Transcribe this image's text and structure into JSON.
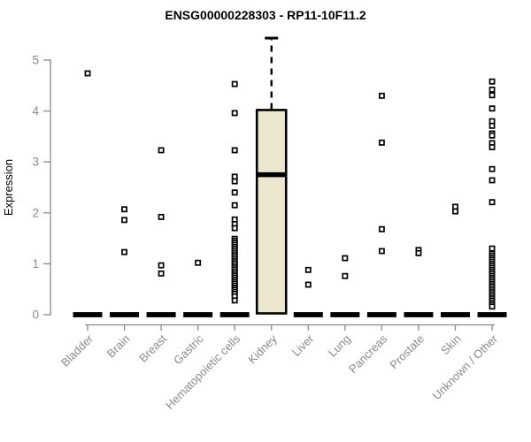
{
  "page": {
    "background": "#ffffff"
  },
  "chart_data": {
    "type": "boxplot",
    "title": "ENSG00000228303 - RP11-10F11.2",
    "ylabel": "Expression",
    "xlabel": "",
    "ylim": [
      0,
      5.5
    ],
    "yticks": [
      0,
      1,
      2,
      3,
      4,
      5
    ],
    "grid": false,
    "legend": "none",
    "title_color": "#000000",
    "axis_color": "#8A8A8A",
    "box_fill_color": "#ECE6CC",
    "box_line_color": "#000000",
    "outlier_marker": "open-square",
    "categories": [
      "Bladder",
      "Brain",
      "Breast",
      "Gastric",
      "Hematopoietic cells",
      "Kidney",
      "Liver",
      "Lung",
      "Pancreas",
      "Prostate",
      "Skin",
      "Unknown / Other"
    ],
    "boxes": [
      {
        "category": "Bladder",
        "q1": 0,
        "median": 0,
        "q3": 0,
        "collapsed": true,
        "points": [
          4.74
        ]
      },
      {
        "category": "Brain",
        "q1": 0,
        "median": 0,
        "q3": 0,
        "collapsed": true,
        "points": [
          2.07,
          1.86,
          1.23
        ]
      },
      {
        "category": "Breast",
        "q1": 0,
        "median": 0,
        "q3": 0,
        "collapsed": true,
        "points": [
          3.23,
          1.92,
          0.97,
          0.81
        ]
      },
      {
        "category": "Gastric",
        "q1": 0,
        "median": 0,
        "q3": 0,
        "collapsed": true,
        "points": [
          1.02
        ]
      },
      {
        "category": "Hematopoietic cells",
        "q1": 0,
        "median": 0,
        "q3": 0,
        "collapsed": true,
        "points": [
          4.53,
          3.96,
          3.23,
          2.71,
          2.62,
          2.4,
          2.15,
          1.87,
          1.78,
          1.7,
          1.49,
          1.45,
          1.41,
          1.37,
          1.33,
          1.29,
          1.25,
          1.21,
          1.17,
          1.13,
          1.09,
          1.05,
          1.01,
          0.97,
          0.93,
          0.89,
          0.85,
          0.81,
          0.77,
          0.73,
          0.69,
          0.65,
          0.61,
          0.57,
          0.53,
          0.49,
          0.45,
          0.41,
          0.36,
          0.28
        ]
      },
      {
        "category": "Kidney",
        "q1": 0,
        "median": 2.75,
        "q3": 4.02,
        "whisker_high": 5.45,
        "whisker_style": "dashed",
        "collapsed": false,
        "points": []
      },
      {
        "category": "Liver",
        "q1": 0,
        "median": 0,
        "q3": 0,
        "collapsed": true,
        "points": [
          0.88,
          0.59
        ]
      },
      {
        "category": "Lung",
        "q1": 0,
        "median": 0,
        "q3": 0,
        "collapsed": true,
        "points": [
          1.11,
          0.76
        ]
      },
      {
        "category": "Pancreas",
        "q1": 0,
        "median": 0,
        "q3": 0,
        "collapsed": true,
        "points": [
          4.3,
          3.38,
          1.68,
          1.25
        ]
      },
      {
        "category": "Prostate",
        "q1": 0,
        "median": 0,
        "q3": 0,
        "collapsed": true,
        "points": [
          1.27,
          1.21
        ]
      },
      {
        "category": "Skin",
        "q1": 0,
        "median": 0,
        "q3": 0,
        "collapsed": true,
        "points": [
          2.12,
          2.03
        ]
      },
      {
        "category": "Unknown / Other",
        "q1": 0,
        "median": 0,
        "q3": 0,
        "collapsed": true,
        "points": [
          4.58,
          4.42,
          4.31,
          4.05,
          3.8,
          3.71,
          3.56,
          3.52,
          3.37,
          3.29,
          2.86,
          2.64,
          2.21,
          1.3,
          1.2,
          1.16,
          1.12,
          1.08,
          1.04,
          1.0,
          0.96,
          0.92,
          0.88,
          0.84,
          0.8,
          0.76,
          0.72,
          0.68,
          0.64,
          0.6,
          0.56,
          0.52,
          0.48,
          0.44,
          0.4,
          0.36,
          0.32,
          0.28,
          0.24,
          0.2,
          0.16
        ]
      }
    ]
  }
}
